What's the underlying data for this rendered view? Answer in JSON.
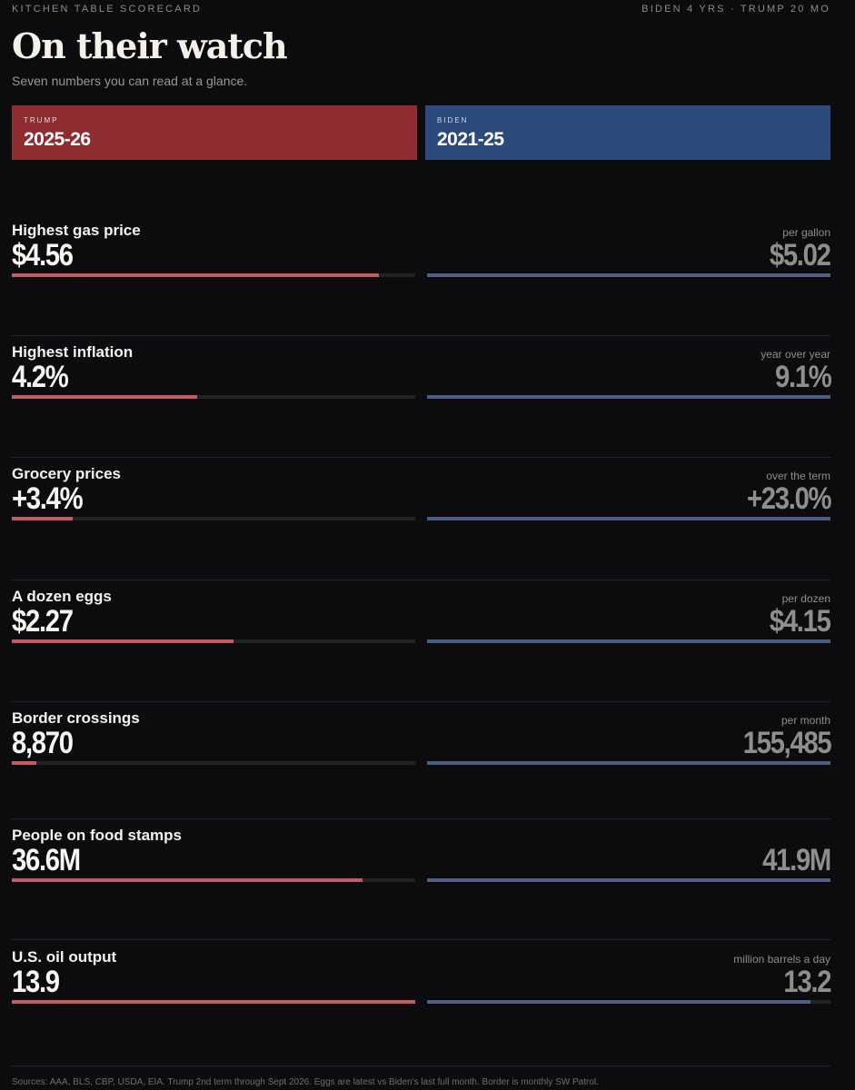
{
  "header": {
    "kicker": "KITCHEN TABLE SCORECARD",
    "tag": "BIDEN 4 YRS · TRUMP 20 MO",
    "title": "On their watch",
    "subtitle": "Seven numbers you can read at a glance."
  },
  "columns": {
    "trump": {
      "who": "TRUMP",
      "years": "2025-26",
      "color": "#8e2c32"
    },
    "biden": {
      "who": "BIDEN",
      "years": "2021-25",
      "color": "#2c4a7b"
    }
  },
  "chart_data": {
    "type": "bar",
    "categories": [
      "Highest gas price",
      "Highest inflation",
      "Grocery prices",
      "A dozen eggs",
      "Border crossings",
      "People on food stamps",
      "U.S. oil output"
    ],
    "units": [
      "per gallon",
      "year over year",
      "over the term",
      "per dozen",
      "per month",
      "",
      "million barrels a day"
    ],
    "series": [
      {
        "name": "TRUMP",
        "labels": [
          "$4.56",
          "4.2%",
          "+3.4%",
          "$2.27",
          "8,870",
          "36.6M",
          "13.9"
        ],
        "values": [
          4.56,
          4.2,
          3.4,
          2.27,
          8870,
          36.6,
          13.9
        ],
        "bar_fill": [
          0.91,
          0.46,
          0.15,
          0.55,
          0.06,
          0.87,
          1.0
        ]
      },
      {
        "name": "BIDEN",
        "labels": [
          "$5.02",
          "9.1%",
          "+23.0%",
          "$4.15",
          "155,485",
          "41.9M",
          "13.2"
        ],
        "values": [
          5.02,
          9.1,
          23.0,
          4.15,
          155485,
          41.9,
          13.2
        ],
        "bar_fill": [
          1.0,
          1.0,
          1.0,
          1.0,
          1.0,
          1.0,
          0.95
        ]
      }
    ]
  },
  "footer": "Sources: AAA, BLS, CBP, USDA, EIA. Trump 2nd term through Sept 2026. Eggs are latest vs Biden's last full month. Border is monthly SW Patrol."
}
